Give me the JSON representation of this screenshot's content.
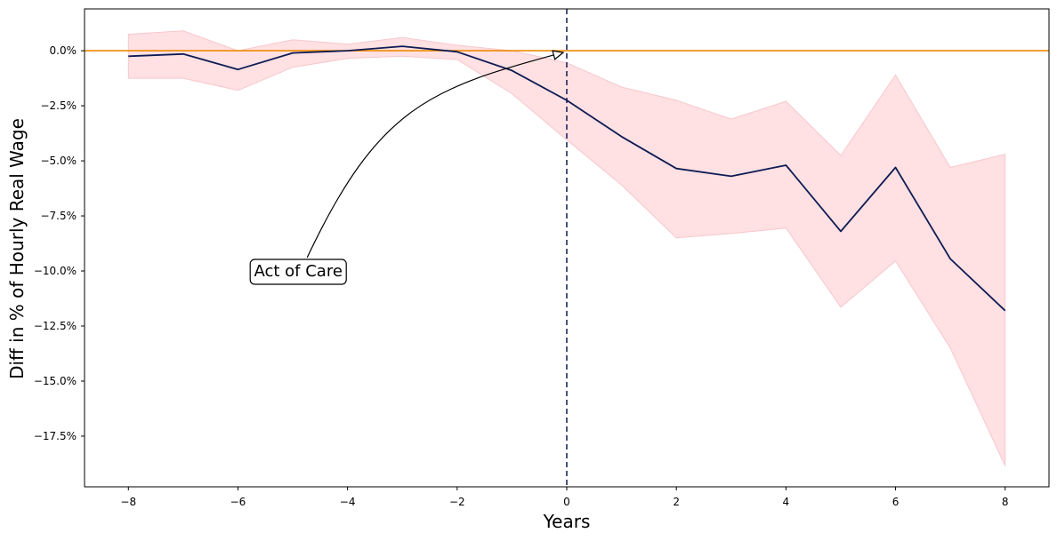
{
  "chart_data": {
    "type": "line",
    "xlabel": "Years",
    "ylabel": "Diff in % of Hourly Real Wage",
    "xlim": [
      -8.8,
      8.8
    ],
    "ylim": [
      -19.8,
      1.9
    ],
    "x_ticks": [
      -8,
      -6,
      -4,
      -2,
      0,
      2,
      4,
      6,
      8
    ],
    "x_tick_labels": [
      "−8",
      "−6",
      "−4",
      "−2",
      "0",
      "2",
      "4",
      "6",
      "8"
    ],
    "y_ticks": [
      0,
      -2.5,
      -5,
      -7.5,
      -10,
      -12.5,
      -15,
      -17.5
    ],
    "y_tick_labels": [
      "0.0%",
      "−2.5%",
      "−5.0%",
      "−7.5%",
      "−10.0%",
      "−12.5%",
      "−15.0%",
      "−17.5%"
    ],
    "x": [
      -8,
      -7,
      -6,
      -5,
      -4,
      -3,
      -2,
      -1,
      0,
      1,
      2,
      3,
      4,
      5,
      6,
      7,
      8
    ],
    "series": [
      {
        "values": [
          -0.25,
          -0.15,
          -0.85,
          -0.1,
          0.0,
          0.2,
          -0.05,
          -0.9,
          -2.25,
          -3.9,
          -5.35,
          -5.7,
          -5.2,
          -8.2,
          -5.3,
          -9.45,
          -11.8
        ]
      }
    ],
    "ci_upper": [
      0.75,
      0.9,
      0.0,
      0.5,
      0.3,
      0.6,
      0.25,
      0.0,
      -0.55,
      -1.65,
      -2.25,
      -3.1,
      -2.3,
      -4.75,
      -1.1,
      -5.3,
      -4.7
    ],
    "ci_lower": [
      -1.25,
      -1.25,
      -1.8,
      -0.75,
      -0.35,
      -0.25,
      -0.4,
      -1.95,
      -4.05,
      -6.1,
      -8.5,
      -8.3,
      -8.05,
      -11.65,
      -9.55,
      -13.5,
      -18.85
    ],
    "reference_lines": {
      "horizontal_y": 0,
      "vertical_x": 0
    },
    "annotation": {
      "text": "Act of Care",
      "text_x": -4.9,
      "text_y": -10.0,
      "arrow_x": 0,
      "arrow_y": 0
    },
    "grid": false,
    "colors": {
      "line": "#0d1b54",
      "ci_fill": "#ffe0e3",
      "ci_edge": "#f6c8cd",
      "hline": "#ee8a00",
      "vline": "#0d1b54"
    }
  }
}
